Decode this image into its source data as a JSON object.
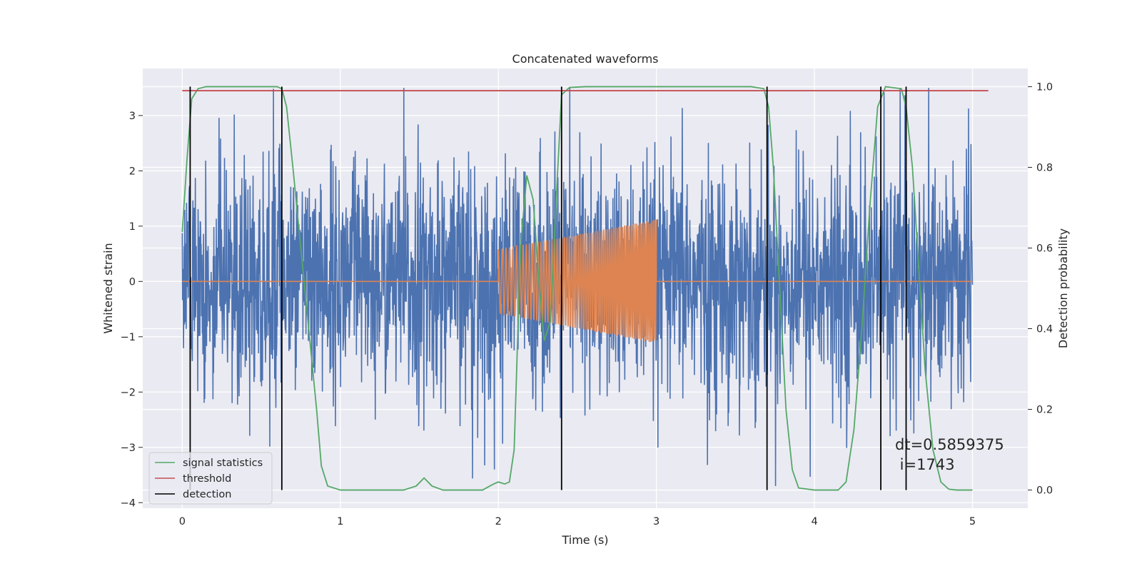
{
  "chart_data": {
    "type": "line",
    "title": "Concatenated waveforms",
    "xlabel": "Time (s)",
    "ylabel_left": "Whitened strain",
    "ylabel_right": "Detection probability",
    "xlim": [
      -0.25,
      5.35
    ],
    "ylim_left": [
      -4.1,
      3.85
    ],
    "ylim_right": [
      -0.045,
      1.045
    ],
    "xticks": [
      0,
      1,
      2,
      3,
      4,
      5
    ],
    "yticks_left": [
      -4,
      -3,
      -2,
      -1,
      0,
      1,
      2,
      3
    ],
    "yticks_right": [
      0.0,
      0.2,
      0.4,
      0.6,
      0.8,
      1.0
    ],
    "grid": true,
    "legend_position": "lower-left",
    "legend": [
      "signal statistics",
      "threshold",
      "detection"
    ],
    "annotation_lines": [
      "dt=0.5859375",
      " i=1743"
    ],
    "series": [
      {
        "name": "signal statistics",
        "axis": "right",
        "color": "#55a868",
        "x": [
          0.0,
          0.03,
          0.06,
          0.1,
          0.15,
          0.3,
          0.5,
          0.6,
          0.63,
          0.66,
          0.7,
          0.75,
          0.8,
          0.85,
          0.88,
          0.92,
          1.0,
          1.4,
          1.48,
          1.53,
          1.58,
          1.65,
          1.9,
          1.97,
          2.0,
          2.04,
          2.07,
          2.1,
          2.14,
          2.18,
          2.22,
          2.26,
          2.29,
          2.33,
          2.37,
          2.4,
          2.45,
          2.55,
          3.0,
          3.6,
          3.68,
          3.71,
          3.74,
          3.78,
          3.82,
          3.86,
          3.9,
          4.0,
          4.15,
          4.2,
          4.25,
          4.3,
          4.35,
          4.4,
          4.45,
          4.55,
          4.58,
          4.62,
          4.66,
          4.7,
          4.75,
          4.8,
          4.85,
          4.9,
          5.0
        ],
        "values": [
          0.64,
          0.82,
          0.97,
          0.995,
          1.0,
          1.0,
          1.0,
          1.0,
          0.995,
          0.95,
          0.8,
          0.6,
          0.4,
          0.2,
          0.06,
          0.01,
          0.0,
          0.0,
          0.01,
          0.03,
          0.01,
          0.0,
          0.0,
          0.015,
          0.02,
          0.015,
          0.02,
          0.1,
          0.6,
          0.78,
          0.72,
          0.5,
          0.37,
          0.42,
          0.75,
          0.98,
          0.998,
          1.0,
          1.0,
          1.0,
          0.995,
          0.95,
          0.8,
          0.5,
          0.2,
          0.05,
          0.005,
          0.0,
          0.0,
          0.02,
          0.15,
          0.4,
          0.7,
          0.95,
          1.0,
          0.995,
          0.95,
          0.8,
          0.55,
          0.3,
          0.1,
          0.02,
          0.002,
          0.0,
          0.0
        ]
      },
      {
        "name": "threshold",
        "axis": "right",
        "color": "#c44e52",
        "x": [
          0.0,
          5.1
        ],
        "values": [
          0.99,
          0.99
        ]
      },
      {
        "name": "detection",
        "axis": "right",
        "color": "#000000",
        "x_positions": [
          0.05,
          0.63,
          2.4,
          3.7,
          4.42,
          4.58
        ],
        "range": [
          0.0,
          1.0
        ]
      },
      {
        "axis": "left",
        "color": "#4c72b0",
        "kind": "noise",
        "x_range": [
          0.0,
          5.0
        ],
        "amplitude_range": [
          -3.7,
          3.5
        ]
      },
      {
        "axis": "left",
        "color": "#dd8452",
        "kind": "chirp",
        "baseline_range": [
          0.0,
          5.0
        ],
        "chirp_range": [
          2.0,
          3.0
        ],
        "amplitude_start": 0.58,
        "amplitude_end": 1.12
      }
    ]
  }
}
